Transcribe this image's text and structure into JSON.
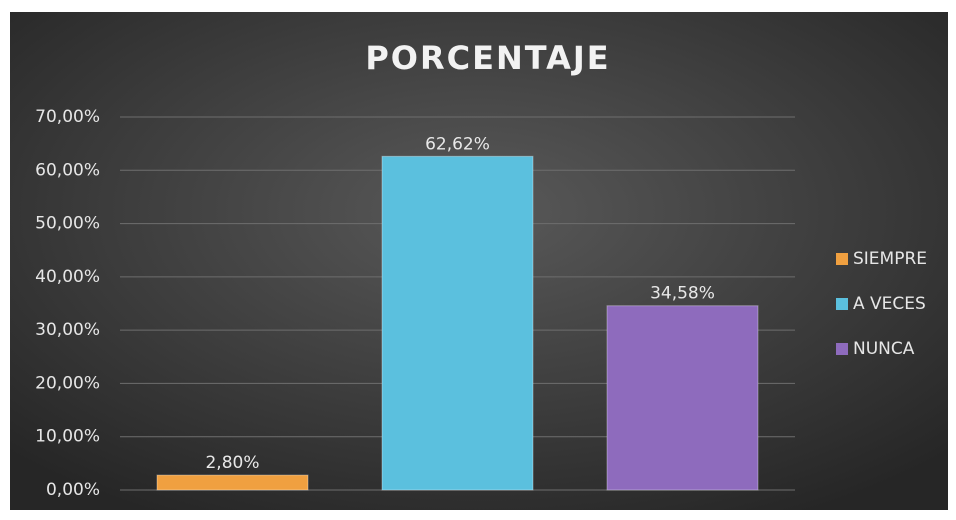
{
  "chart_data": {
    "type": "bar",
    "title": "PORCENTAJE",
    "series": [
      {
        "name": "SIEMPRE",
        "color": "#f0a040",
        "values": [
          2.8
        ],
        "value_labels": [
          "2,80%"
        ]
      },
      {
        "name": "A VECES",
        "color": "#5bc0de",
        "values": [
          62.62
        ],
        "value_labels": [
          "62,62%"
        ]
      },
      {
        "name": "NUNCA",
        "color": "#8e6bbd",
        "values": [
          34.58
        ],
        "value_labels": [
          "34,58%"
        ]
      }
    ],
    "ylim": [
      0,
      70
    ],
    "yticks": [
      {
        "value": 0,
        "label": "0,00%"
      },
      {
        "value": 10,
        "label": "10,00%"
      },
      {
        "value": 20,
        "label": "20,00%"
      },
      {
        "value": 30,
        "label": "30,00%"
      },
      {
        "value": 40,
        "label": "40,00%"
      },
      {
        "value": 50,
        "label": "50,00%"
      },
      {
        "value": 60,
        "label": "60,00%"
      },
      {
        "value": 70,
        "label": "70,00%"
      }
    ],
    "grid": true,
    "legend": "right"
  }
}
